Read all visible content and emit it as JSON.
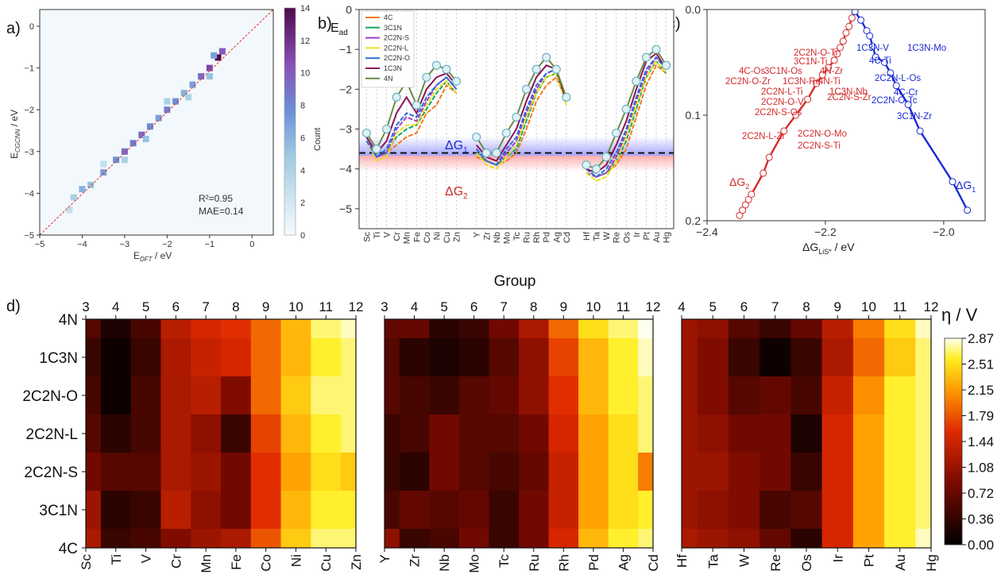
{
  "panels": {
    "a": "a)",
    "b": "b)",
    "c": "c)",
    "d": "d)"
  },
  "chart_data": [
    {
      "id": "a",
      "type": "heatmap",
      "xlabel_main": "E",
      "xlabel_sub": "DFT",
      "xlabel_unit": " / eV",
      "ylabel_main": "E",
      "ylabel_sub": "CGCNN",
      "ylabel_unit": " / eV",
      "xlim": [
        -5,
        0.5
      ],
      "ylim": [
        -5,
        0.4
      ],
      "xticks": [
        -5,
        -4,
        -3,
        -2,
        -1,
        0
      ],
      "yticks": [
        0,
        -1,
        -2,
        -3,
        -4,
        -5
      ],
      "xtick_labels": [
        "−5",
        "−4",
        "−3",
        "−2",
        "−1",
        "0"
      ],
      "ytick_labels": [
        "0",
        "−1",
        "−2",
        "−3",
        "−4",
        "−5"
      ],
      "annotation_r2": "R²=0.95",
      "annotation_mae": "MAE=0.14",
      "colorbar_label": "Count",
      "colorbar_ticks": [
        "0",
        "2",
        "4",
        "6",
        "8",
        "10",
        "12",
        "14"
      ],
      "colorbar_range": [
        0,
        14
      ],
      "points": [
        [
          -4.2,
          -4.1,
          3
        ],
        [
          -4.0,
          -3.9,
          5
        ],
        [
          -3.8,
          -3.8,
          4
        ],
        [
          -3.5,
          -3.5,
          6
        ],
        [
          -3.2,
          -3.2,
          7
        ],
        [
          -3.0,
          -3.0,
          9
        ],
        [
          -2.8,
          -2.8,
          8
        ],
        [
          -2.6,
          -2.6,
          9
        ],
        [
          -2.4,
          -2.4,
          7
        ],
        [
          -2.2,
          -2.2,
          6
        ],
        [
          -2.0,
          -2.0,
          8
        ],
        [
          -1.8,
          -1.8,
          7
        ],
        [
          -1.6,
          -1.6,
          5
        ],
        [
          -1.4,
          -1.4,
          6
        ],
        [
          -1.2,
          -1.2,
          9
        ],
        [
          -1.0,
          -1.0,
          11
        ],
        [
          -0.8,
          -0.75,
          14
        ],
        [
          -0.7,
          -0.6,
          10
        ],
        [
          -3.0,
          -3.2,
          3
        ],
        [
          -2.5,
          -2.7,
          4
        ],
        [
          -2.0,
          -1.8,
          3
        ],
        [
          -1.5,
          -1.7,
          3
        ],
        [
          -3.5,
          -3.3,
          2
        ],
        [
          -4.3,
          -4.4,
          2
        ],
        [
          -1.0,
          -1.2,
          4
        ],
        [
          -0.9,
          -0.7,
          6
        ]
      ]
    },
    {
      "id": "b",
      "type": "line",
      "ylabel": "E",
      "ylabel_sub": "ad",
      "ylim": [
        -5.5,
        0
      ],
      "yticks": [
        0,
        -1,
        -2,
        -3,
        -4,
        -5
      ],
      "ytick_labels": [
        "0",
        "−1",
        "−2",
        "−3",
        "−4",
        "−5"
      ],
      "categories": [
        "Sc",
        "Ti",
        "V",
        "Cr",
        "Mn",
        "Fe",
        "Co",
        "Ni",
        "Cu",
        "Zn",
        "",
        "Y",
        "Zr",
        "Nb",
        "Mo",
        "Tc",
        "Ru",
        "Rh",
        "Pd",
        "Ag",
        "Cd",
        "",
        "Hf",
        "Ta",
        "W",
        "Re",
        "Os",
        "Ir",
        "Pt",
        "Au",
        "Hg"
      ],
      "dashed_line": -3.6,
      "annot_g1": {
        "main": "ΔG",
        "sub": "1"
      },
      "annot_g2": {
        "main": "ΔG",
        "sub": "2"
      },
      "series": [
        {
          "name": "4C",
          "color": "#f07a1e",
          "values": [
            -3.3,
            -3.7,
            -3.6,
            -3.4,
            -3.2,
            -3.1,
            -2.6,
            -2.4,
            -1.9,
            -2.1,
            null,
            -3.7,
            -3.8,
            -3.9,
            -3.8,
            -3.6,
            -3.0,
            -2.3,
            -1.9,
            -1.7,
            -2.3,
            null,
            -4.0,
            -4.2,
            -4.1,
            -3.9,
            -3.5,
            -2.7,
            -1.9,
            -1.4,
            -1.6
          ]
        },
        {
          "name": "3C1N",
          "color": "#1aa35f",
          "values": [
            -3.3,
            -3.7,
            -3.6,
            -3.2,
            -3.0,
            -2.9,
            -2.5,
            -2.1,
            -1.8,
            -2.1,
            null,
            -3.6,
            -3.8,
            -3.9,
            -3.7,
            -3.5,
            -2.8,
            -2.1,
            -1.7,
            -1.6,
            -2.3,
            null,
            -4.0,
            -4.2,
            -4.1,
            -3.8,
            -3.3,
            -2.5,
            -1.7,
            -1.3,
            -1.6
          ]
        },
        {
          "name": "2C2N-S",
          "color": "#a03fc8",
          "values": [
            -3.2,
            -3.7,
            -3.6,
            -3.0,
            -2.7,
            -2.8,
            -2.3,
            -1.9,
            -1.7,
            -2.0,
            null,
            -3.5,
            -3.8,
            -3.9,
            -3.6,
            -3.3,
            -2.6,
            -2.0,
            -1.6,
            -1.5,
            -2.3,
            null,
            -4.1,
            -4.2,
            -4.1,
            -3.7,
            -3.1,
            -2.3,
            -1.6,
            -1.2,
            -1.5
          ]
        },
        {
          "name": "2C2N-L",
          "color": "#e8df1e",
          "values": [
            -3.3,
            -3.8,
            -3.7,
            -3.1,
            -2.9,
            -2.9,
            -2.4,
            -2.0,
            -1.8,
            -2.1,
            null,
            -3.6,
            -3.9,
            -4.0,
            -3.7,
            -3.4,
            -2.7,
            -2.1,
            -1.7,
            -1.6,
            -2.4,
            null,
            -4.1,
            -4.3,
            -4.2,
            -3.8,
            -3.2,
            -2.4,
            -1.7,
            -1.3,
            -1.6
          ]
        },
        {
          "name": "2C2N-O",
          "color": "#2a6fd8",
          "values": [
            -3.3,
            -3.7,
            -3.5,
            -2.9,
            -2.6,
            -2.7,
            -2.2,
            -1.9,
            -1.7,
            -2.0,
            null,
            -3.5,
            -3.8,
            -3.9,
            -3.5,
            -3.2,
            -2.5,
            -1.9,
            -1.6,
            -1.5,
            -2.3,
            null,
            -4.0,
            -4.2,
            -4.0,
            -3.6,
            -3.0,
            -2.2,
            -1.5,
            -1.2,
            -1.5
          ]
        },
        {
          "name": "1C3N",
          "color": "#8a1458",
          "values": [
            -3.2,
            -3.6,
            -3.3,
            -2.6,
            -2.2,
            -2.6,
            -2.0,
            -1.7,
            -1.6,
            -1.9,
            null,
            -3.4,
            -3.7,
            -3.8,
            -3.4,
            -3.0,
            -2.3,
            -1.7,
            -1.4,
            -1.5,
            -2.3,
            null,
            -4.0,
            -4.1,
            -3.9,
            -3.4,
            -2.8,
            -2.0,
            -1.3,
            -1.1,
            -1.5
          ]
        },
        {
          "name": "4N",
          "color": "#6b8a44",
          "values": [
            -3.1,
            -3.5,
            -3.0,
            -2.2,
            -1.8,
            -2.4,
            -1.7,
            -1.4,
            -1.5,
            -1.8,
            null,
            -3.2,
            -3.6,
            -3.6,
            -3.1,
            -2.7,
            -2.0,
            -1.5,
            -1.2,
            -1.5,
            -2.2,
            null,
            -3.9,
            -4.0,
            -3.7,
            -3.1,
            -2.5,
            -1.8,
            -1.2,
            -1.0,
            -1.4
          ]
        }
      ]
    },
    {
      "id": "c",
      "type": "line",
      "xlabel_main": "ΔG",
      "xlabel_sub": "LiS*",
      "xlabel_unit": " / eV",
      "xlim": [
        -2.4,
        -1.93
      ],
      "ylim": [
        0,
        0.2
      ],
      "xticks": [
        -2.4,
        -2.2,
        -2.0
      ],
      "yticks": [
        0.0,
        0.1,
        0.2
      ],
      "xtick_labels": [
        "−2.4",
        "−2.2",
        "−2.0"
      ],
      "ytick_labels": [
        "0.0",
        "0.1",
        "0.2"
      ],
      "annot_g1": {
        "main": "ΔG",
        "sub": "1"
      },
      "annot_g2": {
        "main": "ΔG",
        "sub": "2"
      },
      "series": [
        {
          "name": "",
          "color": "#d42a2a",
          "x": [
            -2.345,
            -2.34,
            -2.335,
            -2.33,
            -2.325,
            -2.305,
            -2.295,
            -2.27,
            -2.25,
            -2.23,
            -2.215,
            -2.205,
            -2.195,
            -2.185,
            -2.18,
            -2.175,
            -2.17,
            -2.165,
            -2.16,
            -2.155,
            -2.15
          ],
          "y": [
            0.195,
            0.19,
            0.185,
            0.18,
            0.175,
            0.155,
            0.14,
            0.115,
            0.1,
            0.085,
            0.07,
            0.062,
            0.055,
            0.048,
            0.042,
            0.036,
            0.03,
            0.022,
            0.016,
            0.008,
            0.002
          ]
        },
        {
          "name": "",
          "color": "#1a2ad4",
          "x": [
            -2.15,
            -2.14,
            -2.13,
            -2.125,
            -2.12,
            -2.115,
            -2.1,
            -2.09,
            -2.08,
            -2.06,
            -2.04,
            -1.985,
            -1.96
          ],
          "y": [
            0.002,
            0.01,
            0.02,
            0.025,
            0.035,
            0.045,
            0.05,
            0.06,
            0.072,
            0.09,
            0.115,
            0.163,
            0.19
          ]
        }
      ],
      "red_labels": [
        "2C2N-O-Ti",
        "3C1N-Ti",
        "4C-Os",
        "3C1N-Os",
        "4N-Zr",
        "2C2N-O-Zr",
        "1C3N-Re",
        "4N-Ti",
        "2C2N-L-Ti",
        "1C3N-Nb",
        "2C2N-O-V",
        "2C2N-S-Zr",
        "2C2N-S-Os",
        "2C2N-L-Zr",
        "2C2N-O-Mo",
        "2C2N-S-Ti"
      ],
      "blue_labels": [
        "1C3N-V",
        "1C3N-Mo",
        "4C-Ti",
        "2C2N-L-Os",
        "4C-Cr",
        "2C2N-O-Tc",
        "3C1N-Zr"
      ]
    },
    {
      "id": "d",
      "type": "heatmap",
      "top_label": "Group",
      "group_ticks": [
        [
          "3",
          "4",
          "5",
          "6",
          "7",
          "8",
          "9",
          "10",
          "11",
          "12"
        ],
        [
          "3",
          "4",
          "5",
          "6",
          "7",
          "8",
          "9",
          "10",
          "11",
          "12"
        ],
        [
          "4",
          "5",
          "6",
          "7",
          "8",
          "9",
          "10",
          "11",
          "12"
        ]
      ],
      "rows": [
        "4N",
        "1C3N",
        "2C2N-O",
        "2C2N-L",
        "2C2N-S",
        "3C1N",
        "4C"
      ],
      "columns": [
        [
          "Sc",
          "Ti",
          "V",
          "Cr",
          "Mn",
          "Fe",
          "Co",
          "Ni",
          "Cu",
          "Zn"
        ],
        [
          "Y",
          "Zr",
          "Nb",
          "Mo",
          "Tc",
          "Ru",
          "Rh",
          "Pd",
          "Ag",
          "Cd"
        ],
        [
          "Hf",
          "Ta",
          "W",
          "Re",
          "Os",
          "Ir",
          "Pt",
          "Au",
          "Hg"
        ]
      ],
      "colorbar_label": "η / V",
      "colorbar_ticks": [
        "2.87",
        "2.51",
        "2.15",
        "1.79",
        "1.44",
        "1.08",
        "0.72",
        "0.36",
        "0.00"
      ],
      "zlim": [
        0,
        2.87
      ],
      "values": [
        [
          [
            0.6,
            0.2,
            0.5,
            1.3,
            1.5,
            1.6,
            1.9,
            2.3,
            2.7,
            2.8
          ],
          [
            0.7,
            0.7,
            0.3,
            0.4,
            0.8,
            1.2,
            1.9,
            2.5,
            2.7,
            2.9
          ],
          [
            1.1,
            1.0,
            0.6,
            0.4,
            0.7,
            1.3,
            2.0,
            2.5,
            2.8
          ]
        ],
        [
          [
            0.4,
            0.1,
            0.4,
            1.2,
            1.4,
            1.5,
            1.9,
            2.3,
            2.6,
            2.7
          ],
          [
            0.6,
            0.3,
            0.2,
            0.3,
            0.6,
            1.0,
            1.7,
            2.3,
            2.6,
            2.8
          ],
          [
            1.1,
            0.9,
            0.4,
            0.1,
            0.4,
            1.2,
            1.9,
            2.4,
            2.7
          ]
        ],
        [
          [
            0.5,
            0.1,
            0.5,
            1.2,
            1.3,
            0.9,
            1.9,
            2.4,
            2.7,
            2.7
          ],
          [
            0.6,
            0.5,
            0.4,
            0.6,
            0.7,
            1.0,
            1.6,
            2.3,
            2.6,
            2.7
          ],
          [
            1.1,
            0.9,
            0.6,
            0.7,
            0.5,
            1.4,
            2.1,
            2.6,
            2.7
          ]
        ],
        [
          [
            0.6,
            0.3,
            0.5,
            1.2,
            1.0,
            0.4,
            1.7,
            2.3,
            2.6,
            2.7
          ],
          [
            0.4,
            0.5,
            0.8,
            0.6,
            0.6,
            0.8,
            1.5,
            2.2,
            2.5,
            2.7
          ],
          [
            1.1,
            1.0,
            0.8,
            0.8,
            0.2,
            1.5,
            2.2,
            2.6,
            2.7
          ]
        ],
        [
          [
            0.8,
            0.6,
            0.6,
            1.2,
            1.1,
            0.8,
            1.6,
            2.2,
            2.5,
            2.4
          ],
          [
            0.4,
            0.3,
            0.8,
            0.6,
            0.5,
            0.7,
            1.4,
            2.2,
            2.5,
            2.0
          ],
          [
            1.1,
            1.1,
            0.9,
            0.8,
            0.4,
            1.5,
            2.2,
            2.6,
            2.7
          ]
        ],
        [
          [
            1.1,
            0.3,
            0.4,
            1.3,
            1.0,
            0.8,
            1.6,
            2.3,
            2.6,
            2.6
          ],
          [
            0.5,
            0.7,
            0.6,
            0.7,
            0.4,
            0.8,
            1.4,
            2.2,
            2.5,
            2.6
          ],
          [
            1.1,
            1.0,
            0.9,
            0.5,
            0.6,
            1.5,
            2.2,
            2.6,
            2.7
          ]
        ],
        [
          [
            1.2,
            0.4,
            0.5,
            0.9,
            1.1,
            1.2,
            1.8,
            2.4,
            2.7,
            2.7
          ],
          [
            1.0,
            0.4,
            0.5,
            0.8,
            0.4,
            0.8,
            1.5,
            2.3,
            2.6,
            2.7
          ],
          [
            1.2,
            1.1,
            1.0,
            0.7,
            0.3,
            1.5,
            2.2,
            2.6,
            2.8
          ]
        ]
      ]
    }
  ]
}
